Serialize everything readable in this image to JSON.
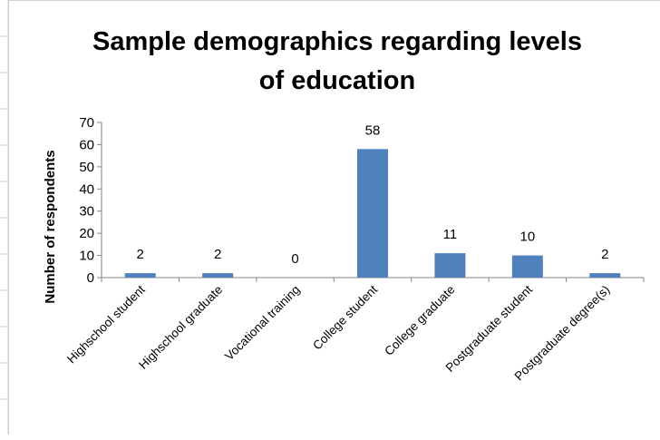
{
  "chart_data": {
    "type": "bar",
    "title_line1": "Sample demographics regarding levels",
    "title_line2": "of education",
    "ylabel": "Number of respondents",
    "xlabel": "",
    "categories": [
      "Highschool student",
      "Highschool graduate",
      "Vocational training",
      "College student",
      "College graduate",
      "Postgraduate student",
      "Postgraduate degree(s)"
    ],
    "values": [
      2,
      2,
      0,
      58,
      11,
      10,
      2
    ],
    "data_labels": [
      "2",
      "2",
      "0",
      "58",
      "11",
      "10",
      "2"
    ],
    "yticks": [
      "0",
      "10",
      "20",
      "30",
      "40",
      "50",
      "60",
      "70"
    ],
    "ylim": [
      0,
      70
    ],
    "grid": false,
    "legend": "none",
    "bar_color": "#4f81bd"
  }
}
